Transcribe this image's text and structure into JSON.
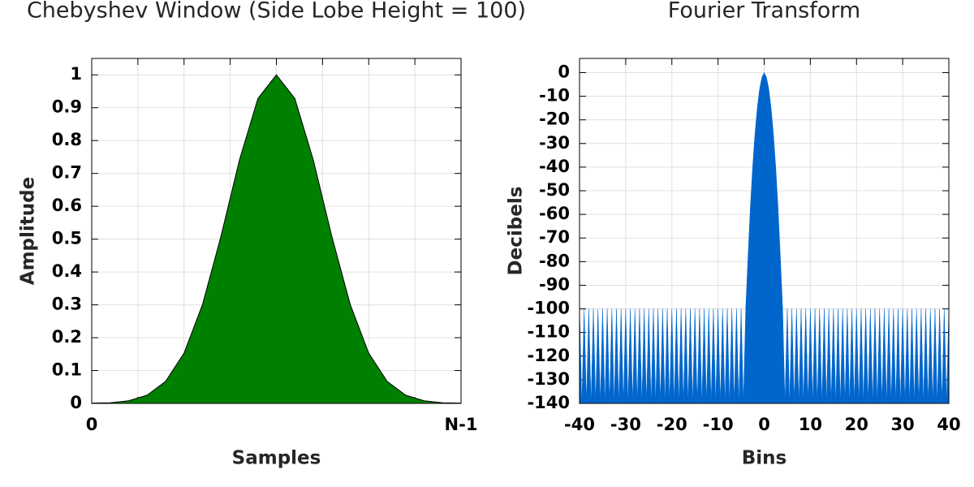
{
  "chart_data": [
    {
      "type": "area",
      "title": "Chebyshev Window (Side Lobe Height = 100)",
      "xlabel": "Samples",
      "ylabel": "Amplitude",
      "x": [
        0,
        0.05,
        0.1,
        0.15,
        0.2,
        0.25,
        0.3,
        0.35,
        0.4,
        0.45,
        0.5,
        0.55,
        0.6,
        0.65,
        0.7,
        0.75,
        0.8,
        0.85,
        0.9,
        0.95,
        1
      ],
      "series": [
        {
          "color": "#008000",
          "values": [
            0.001,
            0.002,
            0.008,
            0.025,
            0.067,
            0.153,
            0.301,
            0.509,
            0.741,
            0.928,
            1,
            0.928,
            0.741,
            0.509,
            0.301,
            0.153,
            0.067,
            0.025,
            0.008,
            0.002,
            0.001
          ]
        }
      ],
      "xlim": [
        0,
        1
      ],
      "xticks": [
        0,
        {
          "value": 1,
          "label": "N-1"
        }
      ],
      "xminorticks": [
        0.125,
        0.25,
        0.375,
        0.5,
        0.625,
        0.75,
        0.875
      ],
      "ylim": [
        0,
        1.05
      ],
      "yticks": [
        0,
        0.1,
        0.2,
        0.3,
        0.4,
        0.5,
        0.6,
        0.7,
        0.8,
        0.9,
        1
      ],
      "grid": true,
      "outline": "#000000"
    },
    {
      "type": "area",
      "title": "Fourier Transform",
      "xlabel": "Bins",
      "ylabel": "Decibels",
      "x": [
        -40,
        -39.5,
        -39,
        -38.5,
        -38,
        -37.5,
        -37,
        -36.5,
        -36,
        -35.5,
        -35,
        -34.5,
        -34,
        -33.5,
        -33,
        -32.5,
        -32,
        -31.5,
        -31,
        -30.5,
        -30,
        -29.5,
        -29,
        -28.5,
        -28,
        -27.5,
        -27,
        -26.5,
        -26,
        -25.5,
        -25,
        -24.5,
        -24,
        -23.5,
        -23,
        -22.5,
        -22,
        -21.5,
        -21,
        -20.5,
        -20,
        -19.5,
        -19,
        -18.5,
        -18,
        -17.5,
        -17,
        -16.5,
        -16,
        -15.5,
        -15,
        -14.5,
        -14,
        -13.5,
        -13,
        -12.5,
        -12,
        -11.5,
        -11,
        -10.5,
        -10,
        -9.5,
        -9,
        -8.5,
        -8,
        -7.5,
        -7,
        -6.5,
        -6,
        -5.5,
        -5,
        -4.5,
        -4,
        -3.5,
        -3,
        -2.5,
        -2,
        -1.5,
        -1,
        -0.5,
        0,
        0.5,
        1,
        1.5,
        2,
        2.5,
        3,
        3.5,
        4,
        4.5,
        5,
        5.5,
        6,
        6.5,
        7,
        7.5,
        8,
        8.5,
        9,
        9.5,
        10,
        10.5,
        11,
        11.5,
        12,
        12.5,
        13,
        13.5,
        14,
        14.5,
        15,
        15.5,
        16,
        16.5,
        17,
        17.5,
        18,
        18.5,
        19,
        19.5,
        20,
        20.5,
        21,
        21.5,
        22,
        22.5,
        23,
        23.5,
        24,
        24.5,
        25,
        25.5,
        26,
        26.5,
        27,
        27.5,
        28,
        28.5,
        29,
        29.5,
        30,
        30.5,
        31,
        31.5,
        32,
        32.5,
        33,
        33.5,
        34,
        34.5,
        35,
        35.5,
        36,
        36.5,
        37,
        37.5,
        38,
        38.5,
        39,
        39.5,
        40
      ],
      "series": [
        {
          "color": "#0066cc",
          "values": [
            -100,
            -140,
            -100,
            -140,
            -100,
            -140,
            -100,
            -140,
            -100,
            -140,
            -100,
            -140,
            -100,
            -140,
            -100,
            -140,
            -100,
            -140,
            -100,
            -140,
            -100,
            -140,
            -100,
            -140,
            -100,
            -140,
            -100,
            -140,
            -100,
            -140,
            -100,
            -140,
            -100,
            -140,
            -100,
            -140,
            -100,
            -140,
            -100,
            -140,
            -100,
            -140,
            -100,
            -140,
            -100,
            -140,
            -100,
            -140,
            -100,
            -140,
            -100,
            -140,
            -100,
            -140,
            -100,
            -140,
            -100,
            -140,
            -100,
            -140,
            -100,
            -140,
            -100,
            -140,
            -100,
            -140,
            -100,
            -140,
            -100,
            -140,
            -100,
            -140,
            -100,
            -78,
            -57,
            -40,
            -26,
            -15,
            -7,
            -2,
            0,
            -2,
            -7,
            -15,
            -26,
            -40,
            -57,
            -78,
            -100,
            -140,
            -100,
            -140,
            -100,
            -140,
            -100,
            -140,
            -100,
            -140,
            -100,
            -140,
            -100,
            -140,
            -100,
            -140,
            -100,
            -140,
            -100,
            -140,
            -100,
            -140,
            -100,
            -140,
            -100,
            -140,
            -100,
            -140,
            -100,
            -140,
            -100,
            -140,
            -100,
            -140,
            -100,
            -140,
            -100,
            -140,
            -100,
            -140,
            -100,
            -140,
            -100,
            -140,
            -100,
            -140,
            -100,
            -140,
            -100,
            -140,
            -100,
            -140,
            -100,
            -140,
            -100,
            -140,
            -100,
            -140,
            -100,
            -140,
            -100,
            -140,
            -100,
            -140,
            -100,
            -140,
            -100,
            -140,
            -100,
            -140,
            -100,
            -140,
            -100
          ]
        }
      ],
      "xlim": [
        -40,
        40
      ],
      "xticks": [
        -40,
        -30,
        -20,
        -10,
        0,
        10,
        20,
        30,
        40
      ],
      "ylim": [
        -140,
        6
      ],
      "yticks": [
        0,
        -10,
        -20,
        -30,
        -40,
        -50,
        -60,
        -70,
        -80,
        -90,
        -100,
        -110,
        -120,
        -130,
        -140
      ],
      "grid": true
    }
  ]
}
